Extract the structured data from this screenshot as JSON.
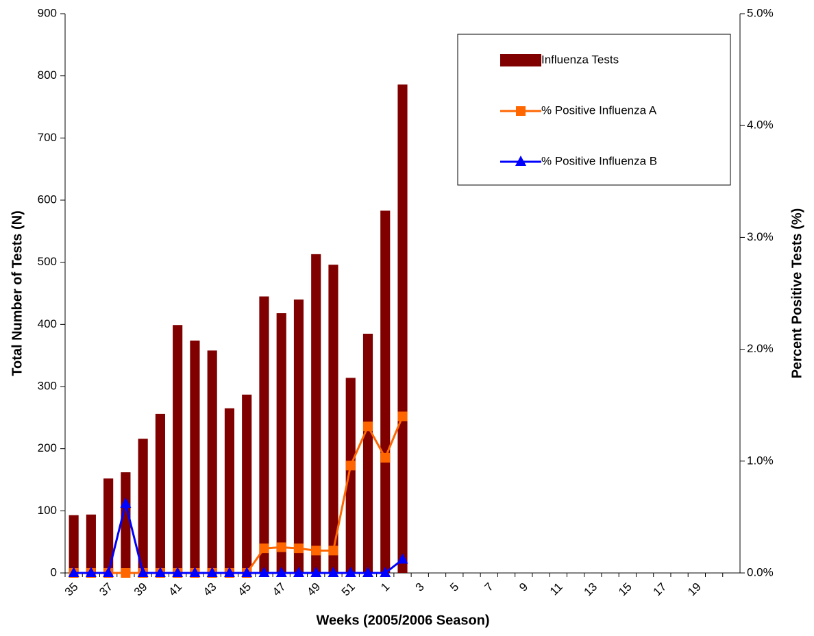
{
  "chart_data": {
    "type": "bar",
    "xlabel": "Weeks (2005/2006 Season)",
    "ylabel": "Total Number of Tests (N)",
    "y2label": "Percent Positive Tests (%)",
    "categories": [
      "35",
      null,
      "37",
      null,
      "39",
      null,
      "41",
      null,
      "43",
      null,
      "45",
      null,
      "47",
      null,
      "49",
      null,
      "51",
      null,
      "1",
      null,
      "3",
      null,
      "5",
      null,
      "7",
      null,
      "9",
      null,
      "11",
      null,
      "13",
      null,
      "15",
      null,
      "17",
      null,
      "19",
      null,
      null
    ],
    "ylim": [
      0,
      900
    ],
    "yticks": [
      0,
      100,
      200,
      300,
      400,
      500,
      600,
      700,
      800,
      900
    ],
    "y2lim": [
      0,
      5
    ],
    "y2ticks": [
      {
        "value": 0,
        "label": "0.0%"
      },
      {
        "value": 1,
        "label": "1.0%"
      },
      {
        "value": 2,
        "label": "2.0%"
      },
      {
        "value": 3,
        "label": "3.0%"
      },
      {
        "value": 4,
        "label": "4.0%"
      },
      {
        "value": 5,
        "label": "5.0%"
      }
    ],
    "legend": "upper right",
    "series": [
      {
        "name": "Influenza Tests",
        "type": "bar",
        "color": "#800000",
        "values": [
          93,
          94,
          152,
          162,
          216,
          256,
          399,
          374,
          358,
          265,
          287,
          445,
          418,
          440,
          513,
          496,
          314,
          385,
          583,
          786,
          null,
          null,
          null,
          null,
          null,
          null,
          null,
          null,
          null,
          null,
          null,
          null,
          null,
          null,
          null,
          null,
          null,
          null,
          null
        ]
      },
      {
        "name": "% Positive Influenza A",
        "type": "line",
        "axis": "y2",
        "marker": "square",
        "color": "#ff6600",
        "values": [
          0,
          0,
          0,
          0,
          0,
          0,
          0,
          0,
          0,
          0,
          0,
          0.22,
          0.23,
          0.22,
          0.2,
          0.2,
          0.96,
          1.31,
          1.03,
          1.4,
          null,
          null,
          null,
          null,
          null,
          null,
          null,
          null,
          null,
          null,
          null,
          null,
          null,
          null,
          null,
          null,
          null,
          null,
          null
        ]
      },
      {
        "name": "% Positive Influenza B",
        "type": "line",
        "axis": "y2",
        "marker": "triangle",
        "color": "#0000ff",
        "values": [
          0,
          0,
          0,
          0.62,
          0,
          0,
          0,
          0,
          0,
          0,
          0,
          0,
          0,
          0,
          0,
          0,
          0,
          0,
          0,
          0.12,
          null,
          null,
          null,
          null,
          null,
          null,
          null,
          null,
          null,
          null,
          null,
          null,
          null,
          null,
          null,
          null,
          null,
          null,
          null
        ]
      }
    ]
  }
}
